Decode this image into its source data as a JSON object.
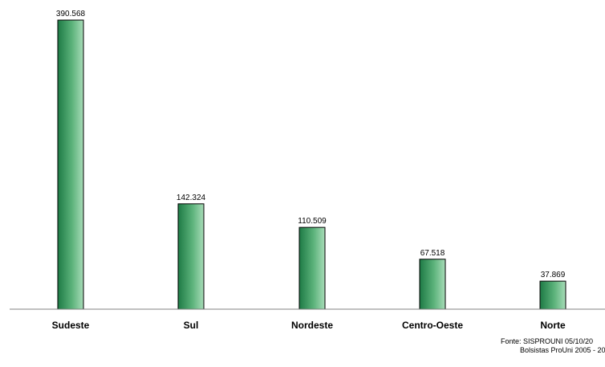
{
  "chart_data": {
    "type": "bar",
    "categories": [
      "Sudeste",
      "Sul",
      "Nordeste",
      "Centro-Oeste",
      "Norte"
    ],
    "values": [
      390568,
      142324,
      110509,
      67518,
      37869
    ],
    "value_labels": [
      "390.568",
      "142.324",
      "110.509",
      "67.518",
      "37.869"
    ],
    "title": "",
    "xlabel": "",
    "ylabel": "",
    "ylim": [
      0,
      390568
    ],
    "grid": false,
    "colors": {
      "bar_dark": "#1e7a45",
      "bar_light": "#a8dcb8",
      "bar_stroke": "#000000"
    }
  },
  "footer": {
    "source_line1": "Fonte: SISPROUNI 05/10/20",
    "source_line2": "Bolsistas ProUni 2005 - 20"
  }
}
